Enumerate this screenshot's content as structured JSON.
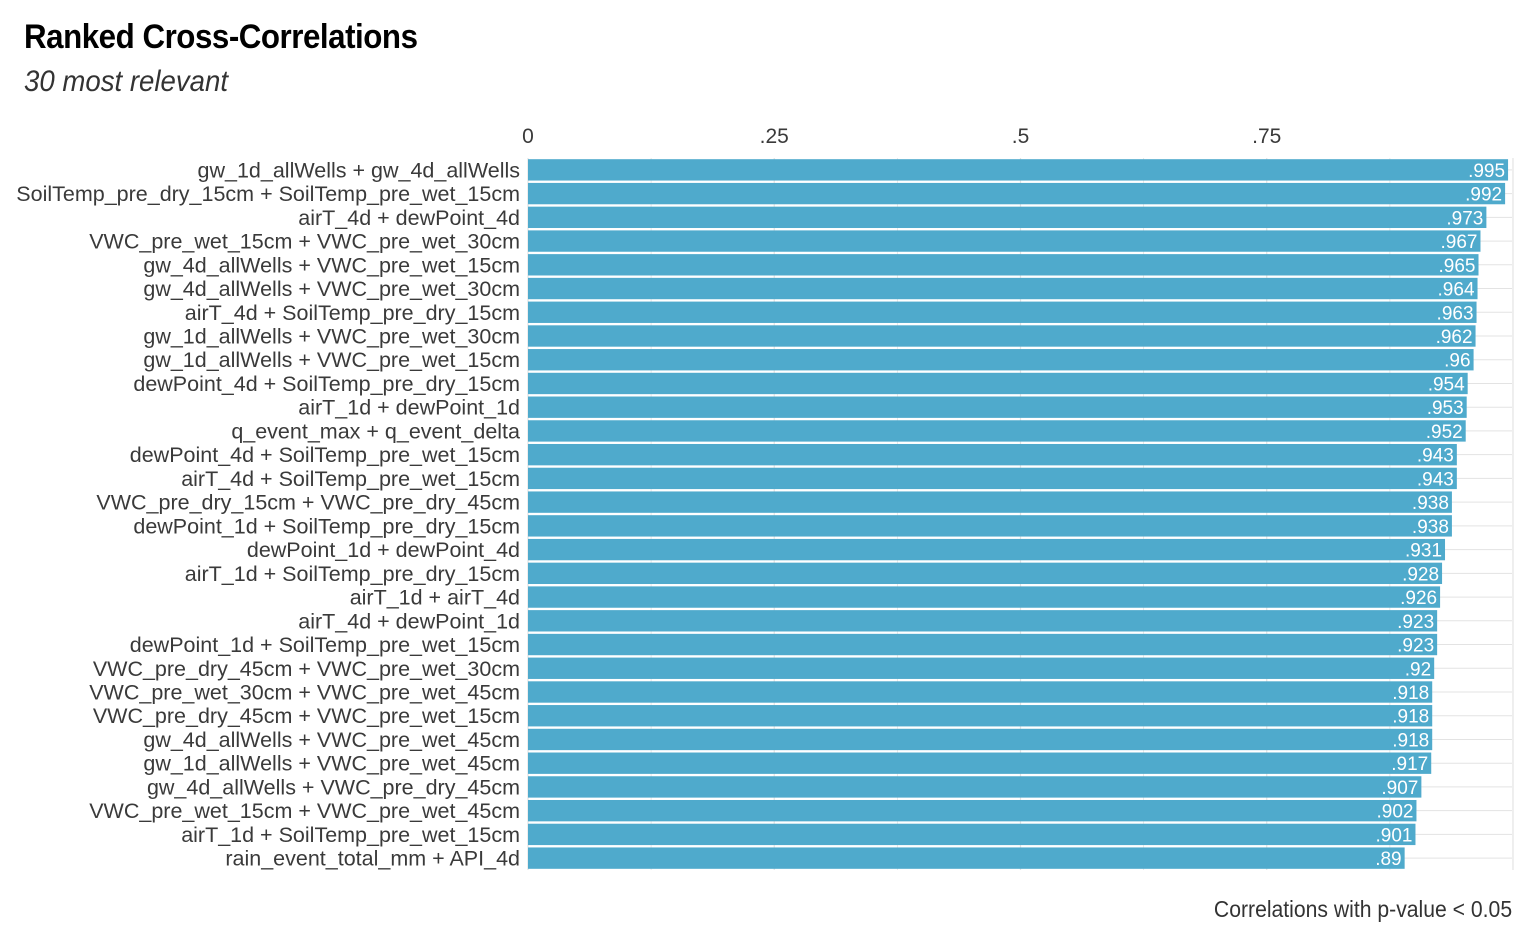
{
  "colors": {
    "bar": "#4faacc",
    "grid": "#e3e3e3",
    "text": "#3a3a3a"
  },
  "chart_data": {
    "type": "bar",
    "orientation": "horizontal",
    "title": "Ranked Cross-Correlations",
    "subtitle": "30 most relevant",
    "caption": "Correlations with p-value < 0.05",
    "xlim": [
      0,
      1
    ],
    "x_ticks": [
      0,
      0.25,
      0.5,
      0.75
    ],
    "x_tick_labels": [
      "0",
      ".25",
      ".5",
      ".75"
    ],
    "x_axis_position": "top",
    "grid": true,
    "categories": [
      "gw_1d_allWells + gw_4d_allWells",
      "SoilTemp_pre_dry_15cm + SoilTemp_pre_wet_15cm",
      "airT_4d + dewPoint_4d",
      "VWC_pre_wet_15cm + VWC_pre_wet_30cm",
      "gw_4d_allWells + VWC_pre_wet_15cm",
      "gw_4d_allWells + VWC_pre_wet_30cm",
      "airT_4d + SoilTemp_pre_dry_15cm",
      "gw_1d_allWells + VWC_pre_wet_30cm",
      "gw_1d_allWells + VWC_pre_wet_15cm",
      "dewPoint_4d + SoilTemp_pre_dry_15cm",
      "airT_1d + dewPoint_1d",
      "q_event_max + q_event_delta",
      "dewPoint_4d + SoilTemp_pre_wet_15cm",
      "airT_4d + SoilTemp_pre_wet_15cm",
      "VWC_pre_dry_15cm + VWC_pre_dry_45cm",
      "dewPoint_1d + SoilTemp_pre_dry_15cm",
      "dewPoint_1d + dewPoint_4d",
      "airT_1d + SoilTemp_pre_dry_15cm",
      "airT_1d + airT_4d",
      "airT_4d + dewPoint_1d",
      "dewPoint_1d + SoilTemp_pre_wet_15cm",
      "VWC_pre_dry_45cm + VWC_pre_wet_30cm",
      "VWC_pre_wet_30cm + VWC_pre_wet_45cm",
      "VWC_pre_dry_45cm + VWC_pre_wet_15cm",
      "gw_4d_allWells + VWC_pre_wet_45cm",
      "gw_1d_allWells + VWC_pre_wet_45cm",
      "gw_4d_allWells + VWC_pre_dry_45cm",
      "VWC_pre_wet_15cm + VWC_pre_wet_45cm",
      "airT_1d + SoilTemp_pre_wet_15cm",
      "rain_event_total_mm + API_4d"
    ],
    "values": [
      0.995,
      0.992,
      0.973,
      0.967,
      0.965,
      0.964,
      0.963,
      0.962,
      0.96,
      0.954,
      0.953,
      0.952,
      0.943,
      0.943,
      0.938,
      0.938,
      0.931,
      0.928,
      0.926,
      0.923,
      0.923,
      0.92,
      0.918,
      0.918,
      0.918,
      0.917,
      0.907,
      0.902,
      0.901,
      0.89
    ],
    "value_labels": [
      ".995",
      ".992",
      ".973",
      ".967",
      ".965",
      ".964",
      ".963",
      ".962",
      ".96",
      ".954",
      ".953",
      ".952",
      ".943",
      ".943",
      ".938",
      ".938",
      ".931",
      ".928",
      ".926",
      ".923",
      ".923",
      ".92",
      ".918",
      ".918",
      ".918",
      ".917",
      ".907",
      ".902",
      ".901",
      ".89"
    ]
  }
}
